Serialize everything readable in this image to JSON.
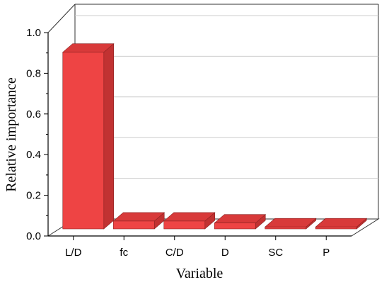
{
  "chart_data": {
    "type": "bar",
    "style": "3d",
    "categories": [
      "L/D",
      "fc",
      "C/D",
      "D",
      "SC",
      "P"
    ],
    "values": [
      0.9,
      0.04,
      0.04,
      0.03,
      0.01,
      0.01
    ],
    "xlabel": "Variable",
    "ylabel": "Relative importance",
    "ylim": [
      0,
      1.0
    ],
    "yticks": [
      "0.0",
      "0.2",
      "0.4",
      "0.6",
      "0.8",
      "1.0"
    ],
    "grid": true,
    "bar_color": "#ee4444",
    "legend": "none"
  }
}
